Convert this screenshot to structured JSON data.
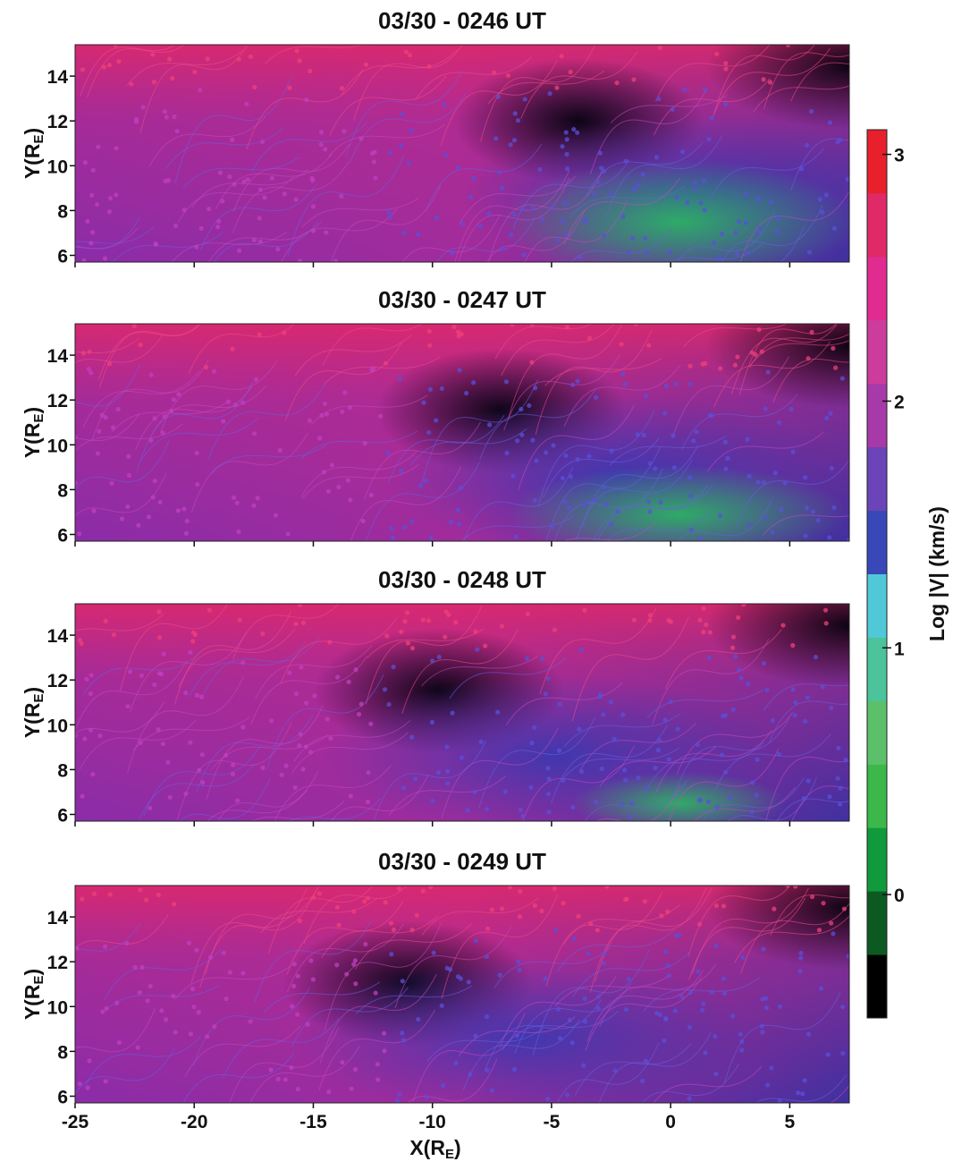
{
  "chart_data": [
    {
      "type": "flow",
      "title": "03/30 - 0246 UT",
      "ylabel": [
        "Y(R",
        "E",
        ")"
      ],
      "xlim": [
        -25,
        7.5
      ],
      "xticks": [
        -25,
        -20,
        -15,
        -10,
        -5,
        0,
        5
      ],
      "ylim": [
        5.7,
        15.4
      ],
      "yticks": [
        6,
        8,
        10,
        12,
        14
      ],
      "xtick_labels": false
    },
    {
      "type": "flow",
      "title": "03/30 - 0247 UT",
      "ylabel": [
        "Y(R",
        "E",
        ")"
      ],
      "xlim": [
        -25,
        7.5
      ],
      "xticks": [
        -25,
        -20,
        -15,
        -10,
        -5,
        0,
        5
      ],
      "ylim": [
        5.7,
        15.4
      ],
      "yticks": [
        6,
        8,
        10,
        12,
        14
      ],
      "xtick_labels": false
    },
    {
      "type": "flow",
      "title": "03/30 - 0248 UT",
      "ylabel": [
        "Y(R",
        "E",
        ")"
      ],
      "xlim": [
        -25,
        7.5
      ],
      "xticks": [
        -25,
        -20,
        -15,
        -10,
        -5,
        0,
        5
      ],
      "ylim": [
        5.7,
        15.4
      ],
      "yticks": [
        6,
        8,
        10,
        12,
        14
      ],
      "xtick_labels": false
    },
    {
      "type": "flow",
      "title": "03/30 - 0249 UT",
      "ylabel": [
        "Y(R",
        "E",
        ")"
      ],
      "xlabel": [
        "X(R",
        "E",
        ")"
      ],
      "xlim": [
        -25,
        7.5
      ],
      "xticks": [
        -25,
        -20,
        -15,
        -10,
        -5,
        0,
        5
      ],
      "ylim": [
        5.7,
        15.4
      ],
      "yticks": [
        6,
        8,
        10,
        12,
        14
      ],
      "xtick_labels": true
    },
    {
      "type": "colorbar",
      "label": "Log |V| (km/s)",
      "ylim": [
        -0.5,
        3.1
      ],
      "yticks": [
        0,
        1,
        2,
        3
      ],
      "colors": [
        "#000000",
        "#0c5a22",
        "#109a3c",
        "#3cb84a",
        "#5cc06a",
        "#4cc39a",
        "#50c8d8",
        "#3848b8",
        "#6a44b8",
        "#a63aa8",
        "#cc3c9c",
        "#e02c90",
        "#e02a68",
        "#e8202c"
      ]
    }
  ]
}
